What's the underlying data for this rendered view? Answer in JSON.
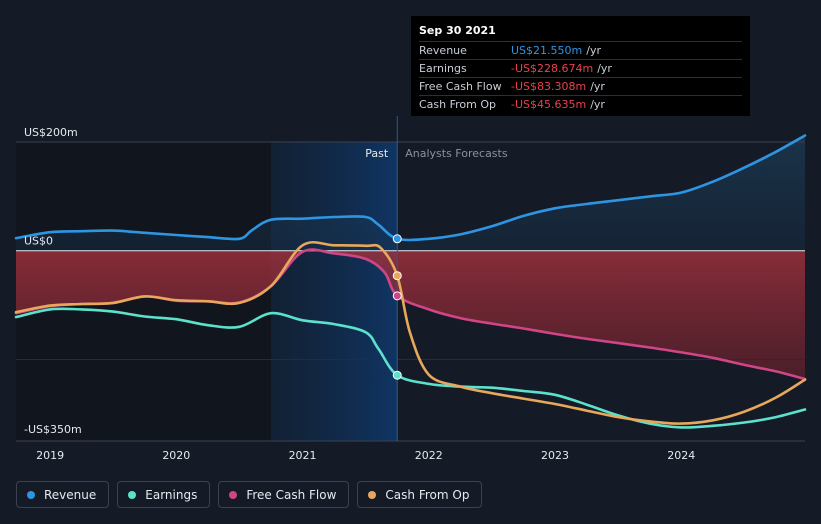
{
  "tooltip": {
    "date": "Sep 30 2021",
    "rows": [
      {
        "label": "Revenue",
        "value": "US$21.550m",
        "unit": "/yr"
      },
      {
        "label": "Earnings",
        "value": "-US$228.674m",
        "unit": "/yr"
      },
      {
        "label": "Free Cash Flow",
        "value": "-US$83.308m",
        "unit": "/yr"
      },
      {
        "label": "Cash From Op",
        "value": "-US$45.635m",
        "unit": "/yr"
      }
    ]
  },
  "labels": {
    "past": "Past",
    "forecast": "Analysts Forecasts"
  },
  "legend": [
    {
      "label": "Revenue",
      "color": "#2e95e3"
    },
    {
      "label": "Earnings",
      "color": "#5ce1cc"
    },
    {
      "label": "Free Cash Flow",
      "color": "#cf4585"
    },
    {
      "label": "Cash From Op",
      "color": "#e8a85b"
    }
  ],
  "chart_data": {
    "type": "line",
    "y_tick_labels": [
      "US$200m",
      "US$0",
      "-US$350m"
    ],
    "y_ticks": [
      200,
      0,
      -350
    ],
    "ylim": [
      -350,
      200
    ],
    "xlim": [
      2018.73,
      2024.98
    ],
    "x_tick_labels": [
      "2019",
      "2020",
      "2021",
      "2022",
      "2023",
      "2024"
    ],
    "x_ticks": [
      2019,
      2020,
      2021,
      2022,
      2023,
      2024
    ],
    "divider_x": 2021.75,
    "highlight_start": 2020.75,
    "grid": "horizontal",
    "colors": {
      "Revenue": "#2e95e3",
      "Earnings": "#5ce1cc",
      "Free Cash Flow": "#cf4585",
      "Cash From Op": "#e8a85b"
    },
    "series": [
      {
        "name": "Revenue",
        "x": [
          2018.73,
          2019.0,
          2019.25,
          2019.5,
          2019.75,
          2020.0,
          2020.25,
          2020.5,
          2020.6,
          2020.75,
          2021.0,
          2021.25,
          2021.5,
          2021.6,
          2021.75,
          2022.0,
          2022.25,
          2022.5,
          2022.75,
          2023.0,
          2023.25,
          2023.5,
          2023.75,
          2024.0,
          2024.25,
          2024.5,
          2024.75,
          2024.98
        ],
        "y": [
          23,
          34,
          36,
          37,
          33,
          29,
          25,
          22,
          38,
          57,
          59,
          62,
          62,
          48,
          22,
          22,
          30,
          45,
          64,
          78,
          86,
          93,
          100,
          107,
          127,
          153,
          182,
          212
        ]
      },
      {
        "name": "Earnings",
        "x": [
          2018.73,
          2019.0,
          2019.25,
          2019.5,
          2019.75,
          2020.0,
          2020.25,
          2020.5,
          2020.75,
          2021.0,
          2021.25,
          2021.5,
          2021.6,
          2021.75,
          2022.0,
          2022.25,
          2022.5,
          2022.75,
          2023.0,
          2023.25,
          2023.5,
          2023.75,
          2024.0,
          2024.25,
          2024.5,
          2024.75,
          2024.98
        ],
        "y": [
          -122,
          -108,
          -108,
          -112,
          -121,
          -126,
          -137,
          -140,
          -115,
          -128,
          -135,
          -150,
          -180,
          -229,
          -245,
          -250,
          -252,
          -258,
          -265,
          -283,
          -303,
          -318,
          -325,
          -322,
          -316,
          -306,
          -292
        ]
      },
      {
        "name": "Free Cash Flow",
        "x": [
          2018.73,
          2019.0,
          2019.25,
          2019.5,
          2019.75,
          2020.0,
          2020.25,
          2020.5,
          2020.75,
          2021.0,
          2021.25,
          2021.5,
          2021.65,
          2021.75,
          2022.0,
          2022.25,
          2022.5,
          2022.75,
          2023.0,
          2023.25,
          2023.5,
          2023.75,
          2024.0,
          2024.25,
          2024.5,
          2024.75,
          2024.98
        ],
        "y": [
          -115,
          -102,
          -98,
          -96,
          -84,
          -92,
          -93,
          -95,
          -65,
          -2,
          -5,
          -15,
          -40,
          -83,
          -108,
          -124,
          -134,
          -143,
          -153,
          -162,
          -170,
          -178,
          -187,
          -197,
          -210,
          -222,
          -236
        ]
      },
      {
        "name": "Cash From Op",
        "x": [
          2018.73,
          2019.0,
          2019.25,
          2019.5,
          2019.75,
          2020.0,
          2020.25,
          2020.5,
          2020.75,
          2021.0,
          2021.25,
          2021.5,
          2021.62,
          2021.75,
          2021.85,
          2022.0,
          2022.25,
          2022.5,
          2022.75,
          2023.0,
          2023.25,
          2023.5,
          2023.75,
          2024.0,
          2024.25,
          2024.5,
          2024.75,
          2024.98
        ],
        "y": [
          -113,
          -101,
          -98,
          -96,
          -84,
          -91,
          -93,
          -96,
          -65,
          10,
          10,
          9,
          5,
          -46,
          -150,
          -228,
          -250,
          -262,
          -272,
          -282,
          -294,
          -306,
          -314,
          -318,
          -312,
          -296,
          -270,
          -237
        ]
      }
    ]
  }
}
